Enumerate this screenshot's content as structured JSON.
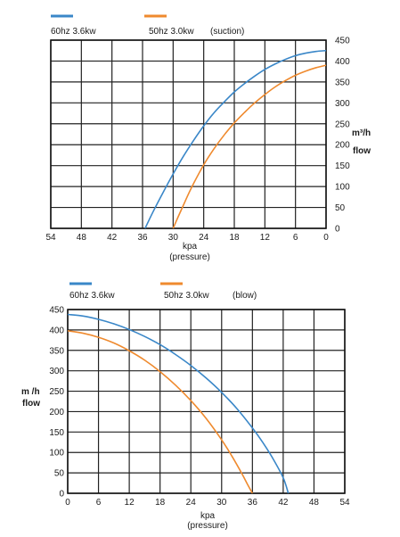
{
  "chart_data": [
    {
      "type": "line",
      "title": "(suction)",
      "xlabel": "kpa",
      "xlabel2": "(pressure)",
      "ylabel": "m³/h",
      "ylabel2": "flow",
      "x_ticks": [
        54,
        48,
        42,
        36,
        30,
        24,
        18,
        12,
        6,
        0
      ],
      "y_ticks": [
        0,
        50,
        100,
        150,
        200,
        250,
        300,
        350,
        400,
        450
      ],
      "xlim": [
        54,
        0
      ],
      "ylim": [
        0,
        450
      ],
      "x_reversed": true,
      "grid": true,
      "legend_position": "top",
      "series": [
        {
          "name": "60hz 3.6kw",
          "color": "#3a87c8",
          "x": [
            35.5,
            34,
            32,
            30,
            28,
            26,
            24,
            22,
            20,
            18,
            16,
            14,
            12,
            10,
            8,
            6,
            4,
            2,
            0
          ],
          "y": [
            0,
            38,
            85,
            130,
            172,
            210,
            245,
            276,
            302,
            326,
            346,
            364,
            380,
            393,
            404,
            413,
            419,
            423,
            425
          ]
        },
        {
          "name": "50hz 3.0kw",
          "color": "#ef8a2e",
          "x": [
            30,
            29,
            28,
            27,
            26,
            24,
            22,
            20,
            18,
            16,
            14,
            12,
            10,
            8,
            6,
            4,
            2,
            0
          ],
          "y": [
            0,
            28,
            55,
            82,
            107,
            152,
            190,
            223,
            252,
            277,
            300,
            320,
            338,
            353,
            366,
            376,
            384,
            390
          ]
        }
      ]
    },
    {
      "type": "line",
      "title": "(blow)",
      "xlabel": "kpa",
      "xlabel2": "(pressure)",
      "ylabel": "m /h",
      "ylabel2": "flow",
      "x_ticks": [
        0,
        6,
        12,
        18,
        24,
        30,
        36,
        42,
        48,
        54
      ],
      "y_ticks": [
        0,
        50,
        100,
        150,
        200,
        250,
        300,
        350,
        400,
        450
      ],
      "xlim": [
        0,
        54
      ],
      "ylim": [
        0,
        450
      ],
      "x_reversed": false,
      "grid": true,
      "legend_position": "top",
      "series": [
        {
          "name": "60hz 3.6kw",
          "color": "#3a87c8",
          "x": [
            0,
            3,
            6,
            9,
            12,
            15,
            18,
            21,
            24,
            27,
            30,
            33,
            36,
            38,
            40,
            42,
            43
          ],
          "y": [
            438,
            434,
            426,
            415,
            401,
            384,
            364,
            340,
            313,
            282,
            247,
            207,
            160,
            125,
            85,
            38,
            0
          ]
        },
        {
          "name": "50hz 3.0kw",
          "color": "#ef8a2e",
          "x": [
            0,
            3,
            6,
            9,
            12,
            15,
            18,
            21,
            24,
            27,
            30,
            32,
            34,
            35,
            36
          ],
          "y": [
            398,
            392,
            382,
            368,
            349,
            326,
            298,
            265,
            227,
            183,
            131,
            91,
            47,
            23,
            0
          ]
        }
      ]
    }
  ]
}
